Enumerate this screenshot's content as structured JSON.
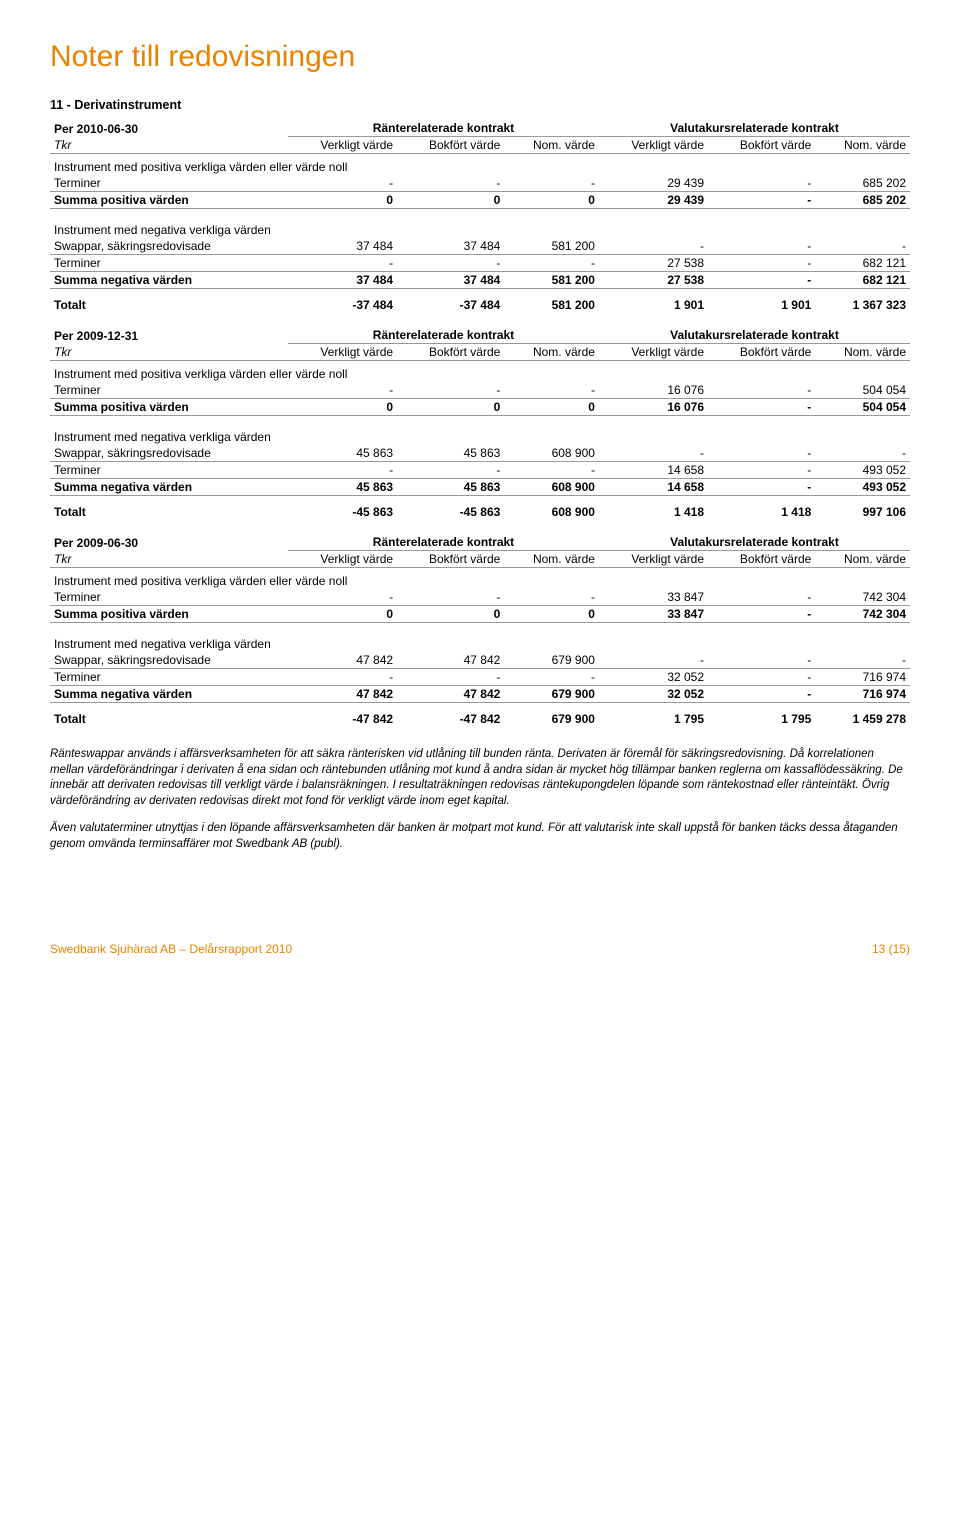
{
  "page_title": "Noter till redovisningen",
  "section_title": "11 - Derivatinstrument",
  "col_group_left": "Ränterelaterade kontrakt",
  "col_group_right": "Valutakursrelaterade kontrakt",
  "col_verkligt": "Verkligt värde",
  "col_bokfort": "Bokfört värde",
  "col_nom": "Nom. värde",
  "tkr": "Tkr",
  "labels": {
    "pos_heading": "Instrument med positiva verkliga värden eller värde noll",
    "neg_heading": "Instrument med negativa verkliga värden",
    "terminer": "Terminer",
    "swappar": "Swappar, säkringsredovisade",
    "summa_pos": "Summa positiva värden",
    "summa_neg": "Summa negativa värden",
    "totalt": "Totalt"
  },
  "periods": [
    {
      "label": "Per 2010-06-30",
      "pos_terminer": [
        "-",
        "-",
        "-",
        "29 439",
        "-",
        "685 202"
      ],
      "summa_pos": [
        "0",
        "0",
        "0",
        "29 439",
        "-",
        "685 202"
      ],
      "neg_swappar": [
        "37 484",
        "37 484",
        "581 200",
        "-",
        "-",
        "-"
      ],
      "neg_terminer": [
        "-",
        "-",
        "-",
        "27 538",
        "-",
        "682 121"
      ],
      "summa_neg": [
        "37 484",
        "37 484",
        "581 200",
        "27 538",
        "-",
        "682 121"
      ],
      "totalt": [
        "-37 484",
        "-37 484",
        "581 200",
        "1 901",
        "1 901",
        "1 367 323"
      ]
    },
    {
      "label": "Per 2009-12-31",
      "pos_terminer": [
        "-",
        "-",
        "-",
        "16 076",
        "-",
        "504 054"
      ],
      "summa_pos": [
        "0",
        "0",
        "0",
        "16 076",
        "-",
        "504 054"
      ],
      "neg_swappar": [
        "45 863",
        "45 863",
        "608 900",
        "-",
        "-",
        "-"
      ],
      "neg_terminer": [
        "-",
        "-",
        "-",
        "14 658",
        "-",
        "493 052"
      ],
      "summa_neg": [
        "45 863",
        "45 863",
        "608 900",
        "14 658",
        "-",
        "493 052"
      ],
      "totalt": [
        "-45 863",
        "-45 863",
        "608 900",
        "1 418",
        "1 418",
        "997 106"
      ]
    },
    {
      "label": "Per 2009-06-30",
      "pos_terminer": [
        "-",
        "-",
        "-",
        "33 847",
        "-",
        "742 304"
      ],
      "summa_pos": [
        "0",
        "0",
        "0",
        "33 847",
        "-",
        "742 304"
      ],
      "neg_swappar": [
        "47 842",
        "47 842",
        "679 900",
        "-",
        "-",
        "-"
      ],
      "neg_terminer": [
        "-",
        "-",
        "-",
        "32 052",
        "-",
        "716 974"
      ],
      "summa_neg": [
        "47 842",
        "47 842",
        "679 900",
        "32 052",
        "-",
        "716 974"
      ],
      "totalt": [
        "-47 842",
        "-47 842",
        "679 900",
        "1 795",
        "1 795",
        "1 459 278"
      ]
    }
  ],
  "para1": "Ränteswappar används i affärsverksamheten för att säkra ränterisken vid utlåning till bunden ränta. Derivaten är föremål för säkringsredovisning. Då korrelationen mellan värdeförändringar i derivaten å ena sidan och räntebunden utlåning mot kund å andra sidan är mycket hög tillämpar banken reglerna om kassaflödessäkring. De innebär att derivaten redovisas till verkligt värde i balansräkningen. I resultaträkningen redovisas räntekupongdelen löpande som räntekostnad eller ränteintäkt. Övrig värdeförändring av derivaten redovisas direkt mot fond för verkligt värde inom eget kapital.",
  "para2": "Även valutaterminer utnyttjas i den löpande affärsverksamheten där banken är motpart mot kund. För att valutarisk inte skall uppstå för banken täcks dessa åtaganden genom omvända terminsaffärer mot Swedbank AB (publ).",
  "footer_left": "Swedbank Sjuhärad  AB – Delårsrapport 2010",
  "footer_right": "13 (15)"
}
